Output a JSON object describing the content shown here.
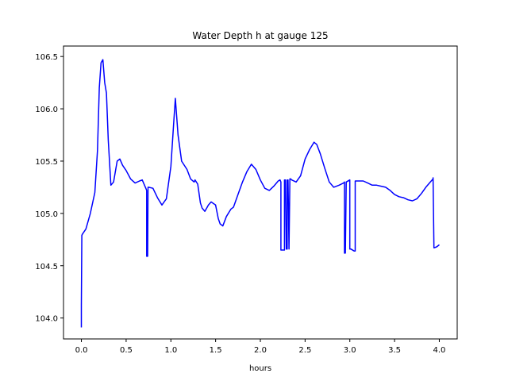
{
  "chart_data": {
    "type": "line",
    "title": "Water Depth h at gauge 125",
    "xlabel": "hours",
    "ylabel": "",
    "xlim": [
      -0.2,
      4.2
    ],
    "ylim": [
      103.8,
      106.6
    ],
    "xticks": [
      0.0,
      0.5,
      1.0,
      1.5,
      2.0,
      2.5,
      3.0,
      3.5,
      4.0
    ],
    "xtick_labels": [
      "0.0",
      "0.5",
      "1.0",
      "1.5",
      "2.0",
      "2.5",
      "3.0",
      "3.5",
      "4.0"
    ],
    "yticks": [
      104.0,
      104.5,
      105.0,
      105.5,
      106.0,
      106.5
    ],
    "ytick_labels": [
      "104.0",
      "104.5",
      "105.0",
      "105.5",
      "106.0",
      "106.5"
    ],
    "grid": false,
    "series": [
      {
        "color": "#0000ff",
        "x": [
          0.0,
          0.0,
          0.005,
          0.01,
          0.05,
          0.1,
          0.15,
          0.18,
          0.2,
          0.22,
          0.24,
          0.26,
          0.28,
          0.3,
          0.33,
          0.36,
          0.4,
          0.43,
          0.46,
          0.5,
          0.55,
          0.6,
          0.65,
          0.68,
          0.72,
          0.73,
          0.73,
          0.74,
          0.745,
          0.75,
          0.8,
          0.85,
          0.9,
          0.95,
          1.0,
          1.03,
          1.05,
          1.08,
          1.12,
          1.18,
          1.22,
          1.26,
          1.27,
          1.3,
          1.33,
          1.35,
          1.38,
          1.42,
          1.45,
          1.5,
          1.53,
          1.55,
          1.58,
          1.62,
          1.67,
          1.7,
          1.75,
          1.8,
          1.85,
          1.9,
          1.95,
          2.0,
          2.05,
          2.1,
          2.15,
          2.2,
          2.22,
          2.23,
          2.23,
          2.26,
          2.27,
          2.27,
          2.28,
          2.29,
          2.3,
          2.3,
          2.31,
          2.32,
          2.32,
          2.33,
          2.34,
          2.35,
          2.4,
          2.45,
          2.5,
          2.55,
          2.6,
          2.63,
          2.67,
          2.72,
          2.77,
          2.82,
          2.88,
          2.93,
          2.94,
          2.94,
          2.95,
          2.96,
          3.0,
          3.0,
          3.01,
          3.05,
          3.06,
          3.06,
          3.07,
          3.1,
          3.15,
          3.2,
          3.25,
          3.3,
          3.35,
          3.4,
          3.45,
          3.5,
          3.55,
          3.6,
          3.65,
          3.7,
          3.75,
          3.8,
          3.85,
          3.9,
          3.93,
          3.93,
          3.94,
          3.97,
          4.0
        ],
        "y": [
          103.91,
          104.12,
          104.79,
          104.8,
          104.85,
          105.0,
          105.2,
          105.6,
          106.2,
          106.44,
          106.47,
          106.25,
          106.15,
          105.7,
          105.27,
          105.3,
          105.5,
          105.52,
          105.46,
          105.41,
          105.33,
          105.29,
          105.31,
          105.32,
          105.24,
          105.22,
          104.59,
          104.59,
          105.25,
          105.25,
          105.24,
          105.15,
          105.08,
          105.14,
          105.45,
          105.85,
          106.1,
          105.75,
          105.5,
          105.42,
          105.33,
          105.3,
          105.32,
          105.28,
          105.1,
          105.05,
          105.02,
          105.08,
          105.11,
          105.08,
          104.95,
          104.9,
          104.88,
          104.97,
          105.04,
          105.06,
          105.18,
          105.3,
          105.4,
          105.47,
          105.42,
          105.32,
          105.24,
          105.22,
          105.26,
          105.31,
          105.32,
          105.3,
          104.65,
          104.65,
          104.65,
          105.32,
          105.32,
          104.66,
          104.66,
          105.32,
          105.32,
          104.66,
          104.66,
          105.33,
          105.33,
          105.32,
          105.3,
          105.36,
          105.52,
          105.61,
          105.68,
          105.66,
          105.57,
          105.43,
          105.3,
          105.25,
          105.27,
          105.29,
          105.3,
          104.62,
          104.62,
          105.3,
          105.32,
          104.66,
          104.66,
          104.64,
          104.64,
          105.31,
          105.31,
          105.31,
          105.31,
          105.29,
          105.27,
          105.27,
          105.26,
          105.25,
          105.22,
          105.18,
          105.16,
          105.15,
          105.13,
          105.12,
          105.14,
          105.19,
          105.25,
          105.3,
          105.33,
          105.34,
          104.67,
          104.68,
          104.7
        ]
      }
    ]
  }
}
